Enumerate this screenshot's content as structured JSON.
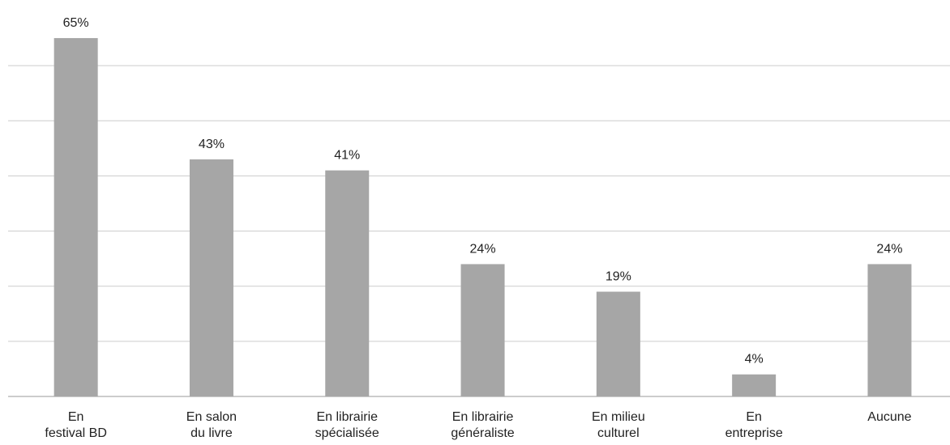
{
  "chart_data": {
    "type": "bar",
    "categories": [
      "En\nfestival BD",
      "En salon\ndu livre",
      "En librairie\nspécialisée",
      "En librairie\ngénéraliste",
      "En milieu\nculturel",
      "En\nentreprise",
      "Aucune"
    ],
    "values": [
      65,
      43,
      41,
      24,
      19,
      4,
      24
    ],
    "value_labels": [
      "65%",
      "43%",
      "41%",
      "24%",
      "19%",
      "4%",
      "24%"
    ],
    "color": "#a6a6a6",
    "ylim": [
      0,
      70
    ],
    "yticks": [
      0,
      10,
      20,
      30,
      40,
      50,
      60
    ],
    "grid": true
  }
}
